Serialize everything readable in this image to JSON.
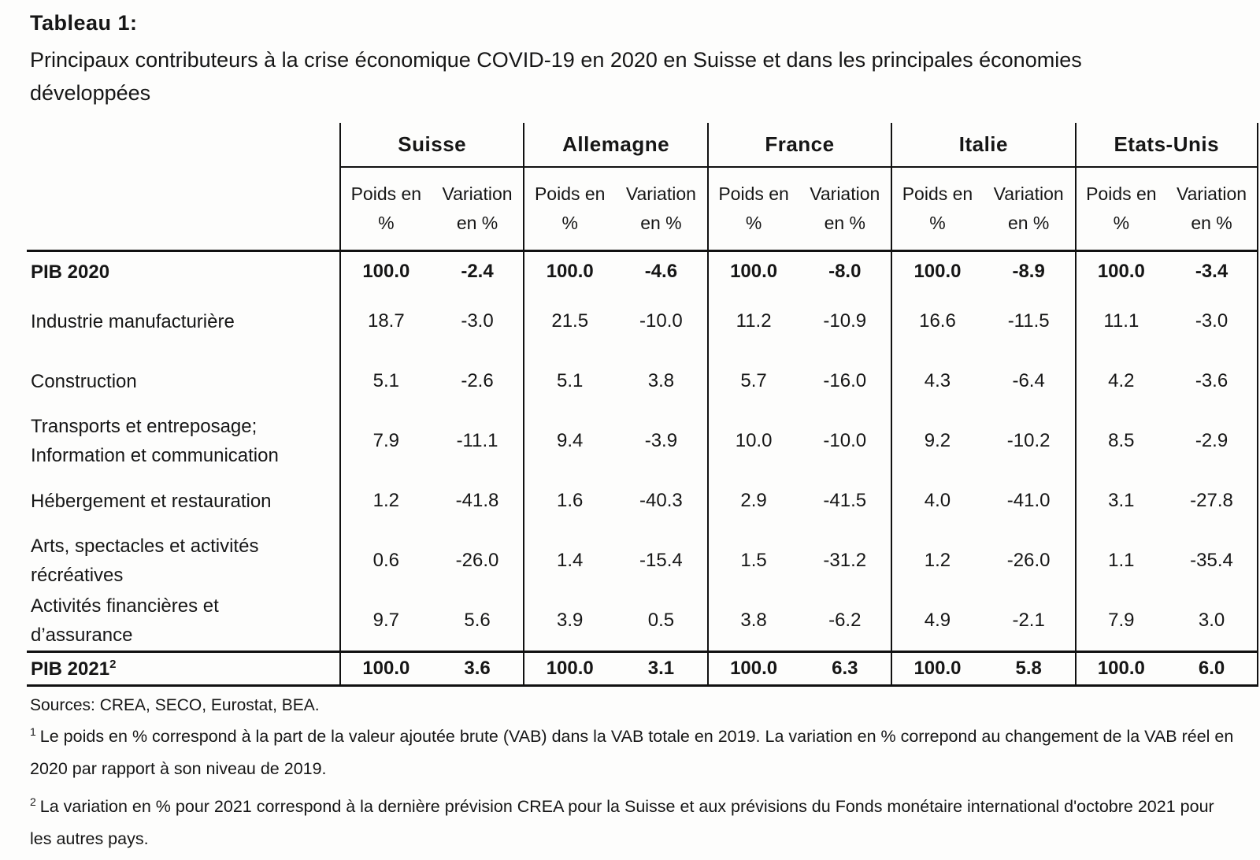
{
  "page": {
    "title": "Tableau 1:",
    "subtitle": "Principaux contributeurs à la crise économique COVID-19 en 2020 en Suisse et dans les principales économies développées"
  },
  "table": {
    "countries": [
      "Suisse",
      "Allemagne",
      "France",
      "Italie",
      "Etats-Unis"
    ],
    "subheader": {
      "poids1": "Poids en",
      "poids2": "%",
      "var1": "Variation",
      "var2": "en %"
    },
    "rows": [
      {
        "label_line1": "PIB 2020",
        "values": [
          "100.0",
          "-2.4",
          "100.0",
          "-4.6",
          "100.0",
          "-8.0",
          "100.0",
          "-8.9",
          "100.0",
          "-3.4"
        ]
      },
      {
        "label_line1": "Industrie manufacturière",
        "values": [
          "18.7",
          "-3.0",
          "21.5",
          "-10.0",
          "11.2",
          "-10.9",
          "16.6",
          "-11.5",
          "11.1",
          "-3.0"
        ]
      },
      {
        "label_line1": "Construction",
        "values": [
          "5.1",
          "-2.6",
          "5.1",
          "3.8",
          "5.7",
          "-16.0",
          "4.3",
          "-6.4",
          "4.2",
          "-3.6"
        ]
      },
      {
        "label_line1": "Transports et entreposage;",
        "label_line2": "Information et communication",
        "values": [
          "7.9",
          "-11.1",
          "9.4",
          "-3.9",
          "10.0",
          "-10.0",
          "9.2",
          "-10.2",
          "8.5",
          "-2.9"
        ]
      },
      {
        "label_line1": "Hébergement et restauration",
        "values": [
          "1.2",
          "-41.8",
          "1.6",
          "-40.3",
          "2.9",
          "-41.5",
          "4.0",
          "-41.0",
          "3.1",
          "-27.8"
        ]
      },
      {
        "label_line1": "Arts, spectacles et activités",
        "label_line2": "récréatives",
        "values": [
          "0.6",
          "-26.0",
          "1.4",
          "-15.4",
          "1.5",
          "-31.2",
          "1.2",
          "-26.0",
          "1.1",
          "-35.4"
        ]
      },
      {
        "label_line1": "Activités financières et",
        "label_line2": "d’assurance",
        "values": [
          "9.7",
          "5.6",
          "3.9",
          "0.5",
          "3.8",
          "-6.2",
          "4.9",
          "-2.1",
          "7.9",
          "3.0"
        ]
      },
      {
        "label_line1": "PIB 2021",
        "label_sup": "2",
        "values": [
          "100.0",
          "3.6",
          "100.0",
          "3.1",
          "100.0",
          "6.3",
          "100.0",
          "5.8",
          "100.0",
          "6.0"
        ]
      }
    ]
  },
  "footer": {
    "sources": "Sources: CREA, SECO, Eurostat, BEA.",
    "footnote1_marker": "1",
    "footnote1": "Le poids en % correspond à la part de la valeur ajoutée brute (VAB) dans la VAB totale en 2019. La variation en % correpond au changement de la VAB réel en 2020 par rapport à son niveau de 2019.",
    "footnote2_marker": "2",
    "footnote2": "La variation en % pour 2021 correspond à la dernière prévision CREA pour la Suisse et aux prévisions du Fonds monétaire international d'octobre 2021 pour les autres pays."
  }
}
